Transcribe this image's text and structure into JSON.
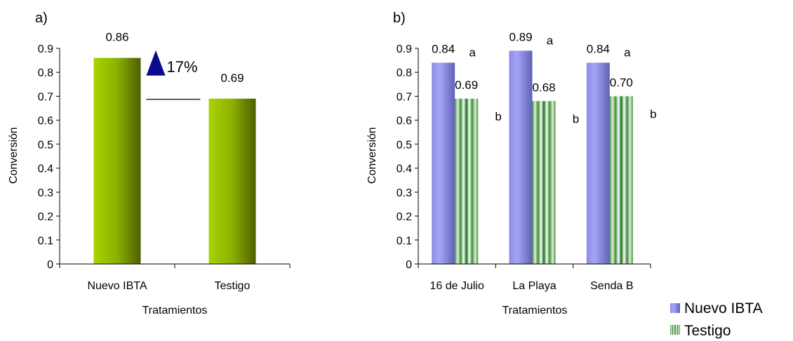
{
  "chart_data": [
    {
      "panel_label": "a)",
      "type": "bar",
      "categories": [
        "Nuevo IBTA",
        "Testigo"
      ],
      "values": [
        0.86,
        0.69
      ],
      "value_labels": [
        "0.86",
        "0.69"
      ],
      "xlabel": "Tratamientos",
      "ylabel": "Conversión",
      "ylim": [
        0,
        0.9
      ],
      "yticks": [
        "0",
        "0.1",
        "0.2",
        "0.3",
        "0.4",
        "0.5",
        "0.6",
        "0.7",
        "0.8",
        "0.9"
      ],
      "bar_color": "#8fb800",
      "bar_color_dark": "#5a6b00",
      "annotation": {
        "text": "17%",
        "arrow_color": "#0a0a8c"
      },
      "grid": false
    },
    {
      "panel_label": "b)",
      "type": "bar",
      "categories": [
        "16 de Julio",
        "La Playa",
        "Senda B"
      ],
      "series": [
        {
          "name": "Nuevo IBTA",
          "values": [
            0.84,
            0.89,
            0.84
          ],
          "value_labels": [
            "0.84",
            "0.89",
            "0.84"
          ],
          "significance": [
            "a",
            "a",
            "a"
          ],
          "color": "#9b9bf0"
        },
        {
          "name": "Testigo",
          "values": [
            0.69,
            0.68,
            0.7
          ],
          "value_labels": [
            "0.69",
            "0.68",
            "0.70"
          ],
          "significance": [
            "b",
            "b",
            "b"
          ],
          "color": "#2e8b2e"
        }
      ],
      "xlabel": "Tratamientos",
      "ylabel": "Conversión",
      "ylim": [
        0,
        0.9
      ],
      "yticks": [
        "0",
        "0.1",
        "0.2",
        "0.3",
        "0.4",
        "0.5",
        "0.6",
        "0.7",
        "0.8",
        "0.9"
      ],
      "legend_position": "bottom-right",
      "grid": false
    }
  ]
}
